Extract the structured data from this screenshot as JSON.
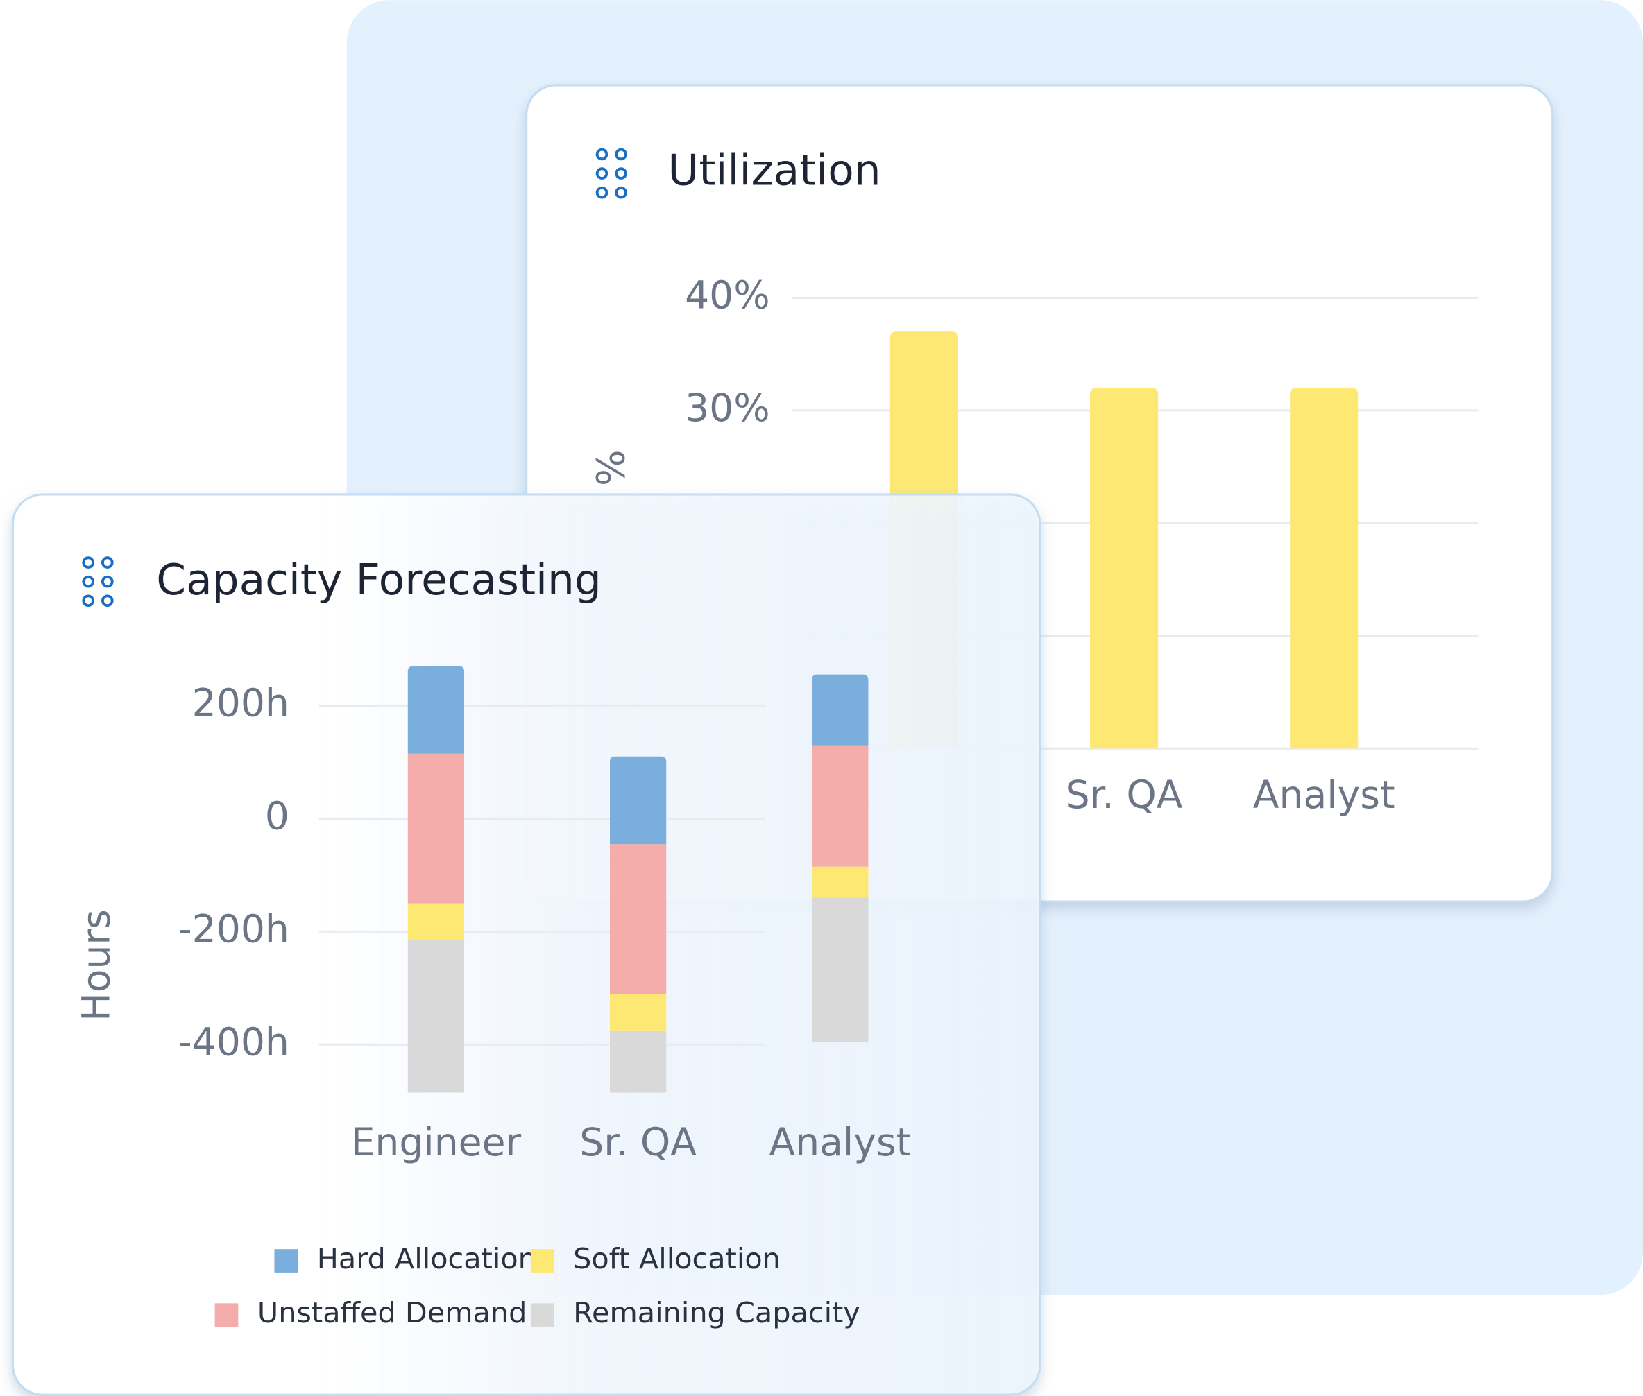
{
  "cards": [
    {
      "chart_data": {
        "type": "bar",
        "title": "Utilization",
        "y_label": "%",
        "categories": [
          null,
          "Sr. QA",
          "Analyst"
        ],
        "values": [
          37,
          32,
          32
        ],
        "color": "#fde874",
        "ylim": [
          0,
          40
        ],
        "yticks": [
          {
            "value": 0,
            "label": null
          },
          {
            "value": 10,
            "label": null
          },
          {
            "value": 20,
            "label": null
          },
          {
            "value": 30,
            "label": "30%"
          },
          {
            "value": 40,
            "label": "40%"
          }
        ],
        "grid": true
      }
    },
    {
      "chart_data": {
        "type": "stacked_bar",
        "title": "Capacity Forecasting",
        "y_label": "Hours",
        "categories": [
          "Engineer",
          "Sr. QA",
          "Analyst"
        ],
        "series": [
          {
            "name": "Hard Allocation",
            "color": "#7aaedc",
            "values": [
              -155,
              -155,
              -125
            ]
          },
          {
            "name": "Soft Allocation",
            "color": "#fde874",
            "values": [
              -65,
              -65,
              -55
            ]
          },
          {
            "name": "Unstaffed Demand",
            "color": "#f5adab",
            "values": [
              -265,
              -265,
              -215
            ]
          },
          {
            "name": "Remaining Capacity",
            "color": "#d9d9d9",
            "values": [
              270,
              110,
              255
            ]
          }
        ],
        "ylim": [
          -500,
          300
        ],
        "yticks": [
          {
            "value": -400,
            "label": "-400h"
          },
          {
            "value": -200,
            "label": "-200h"
          },
          0,
          {
            "value": 200,
            "label": "200h"
          }
        ],
        "grid": true
      }
    }
  ]
}
